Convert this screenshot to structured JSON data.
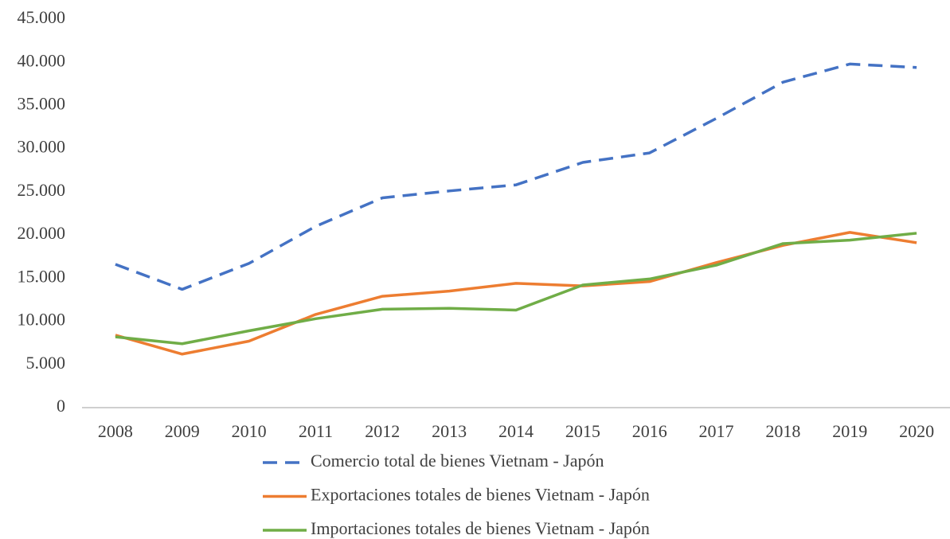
{
  "chart_data": {
    "type": "line",
    "categories": [
      "2008",
      "2009",
      "2010",
      "2011",
      "2012",
      "2013",
      "2014",
      "2015",
      "2016",
      "2017",
      "2018",
      "2019",
      "2020"
    ],
    "series": [
      {
        "name": "Comercio total de bienes Vietnam - Japón",
        "color": "#4472c4",
        "dashed": true,
        "values": [
          16600,
          13700,
          16700,
          21000,
          24300,
          25100,
          25800,
          28400,
          29500,
          33500,
          37700,
          39800,
          39400
        ]
      },
      {
        "name": "Exportaciones totales de bienes Vietnam - Japón",
        "color": "#ed7d31",
        "dashed": false,
        "values": [
          8400,
          6200,
          7700,
          10800,
          12900,
          13500,
          14400,
          14100,
          14600,
          16800,
          18800,
          20300,
          19100
        ]
      },
      {
        "name": "Importaciones totales de bienes Vietnam - Japón",
        "color": "#70ad47",
        "dashed": false,
        "values": [
          8200,
          7400,
          8900,
          10300,
          11400,
          11500,
          11300,
          14200,
          14900,
          16500,
          19000,
          19400,
          20200
        ]
      }
    ],
    "ylim": [
      0,
      45000
    ],
    "yticks": [
      0,
      {
        "value": 5000,
        "label": "5.000"
      },
      {
        "value": 10000,
        "label": "10.000"
      },
      {
        "value": 15000,
        "label": "15.000"
      },
      {
        "value": 20000,
        "label": "20.000"
      },
      {
        "value": 25000,
        "label": "25.000"
      },
      {
        "value": 30000,
        "label": "30.000"
      },
      {
        "value": 35000,
        "label": "35.000"
      },
      {
        "value": 40000,
        "label": "40.000"
      },
      {
        "value": 45000,
        "label": "45.000"
      }
    ],
    "grid": false,
    "legend": "bottom"
  }
}
